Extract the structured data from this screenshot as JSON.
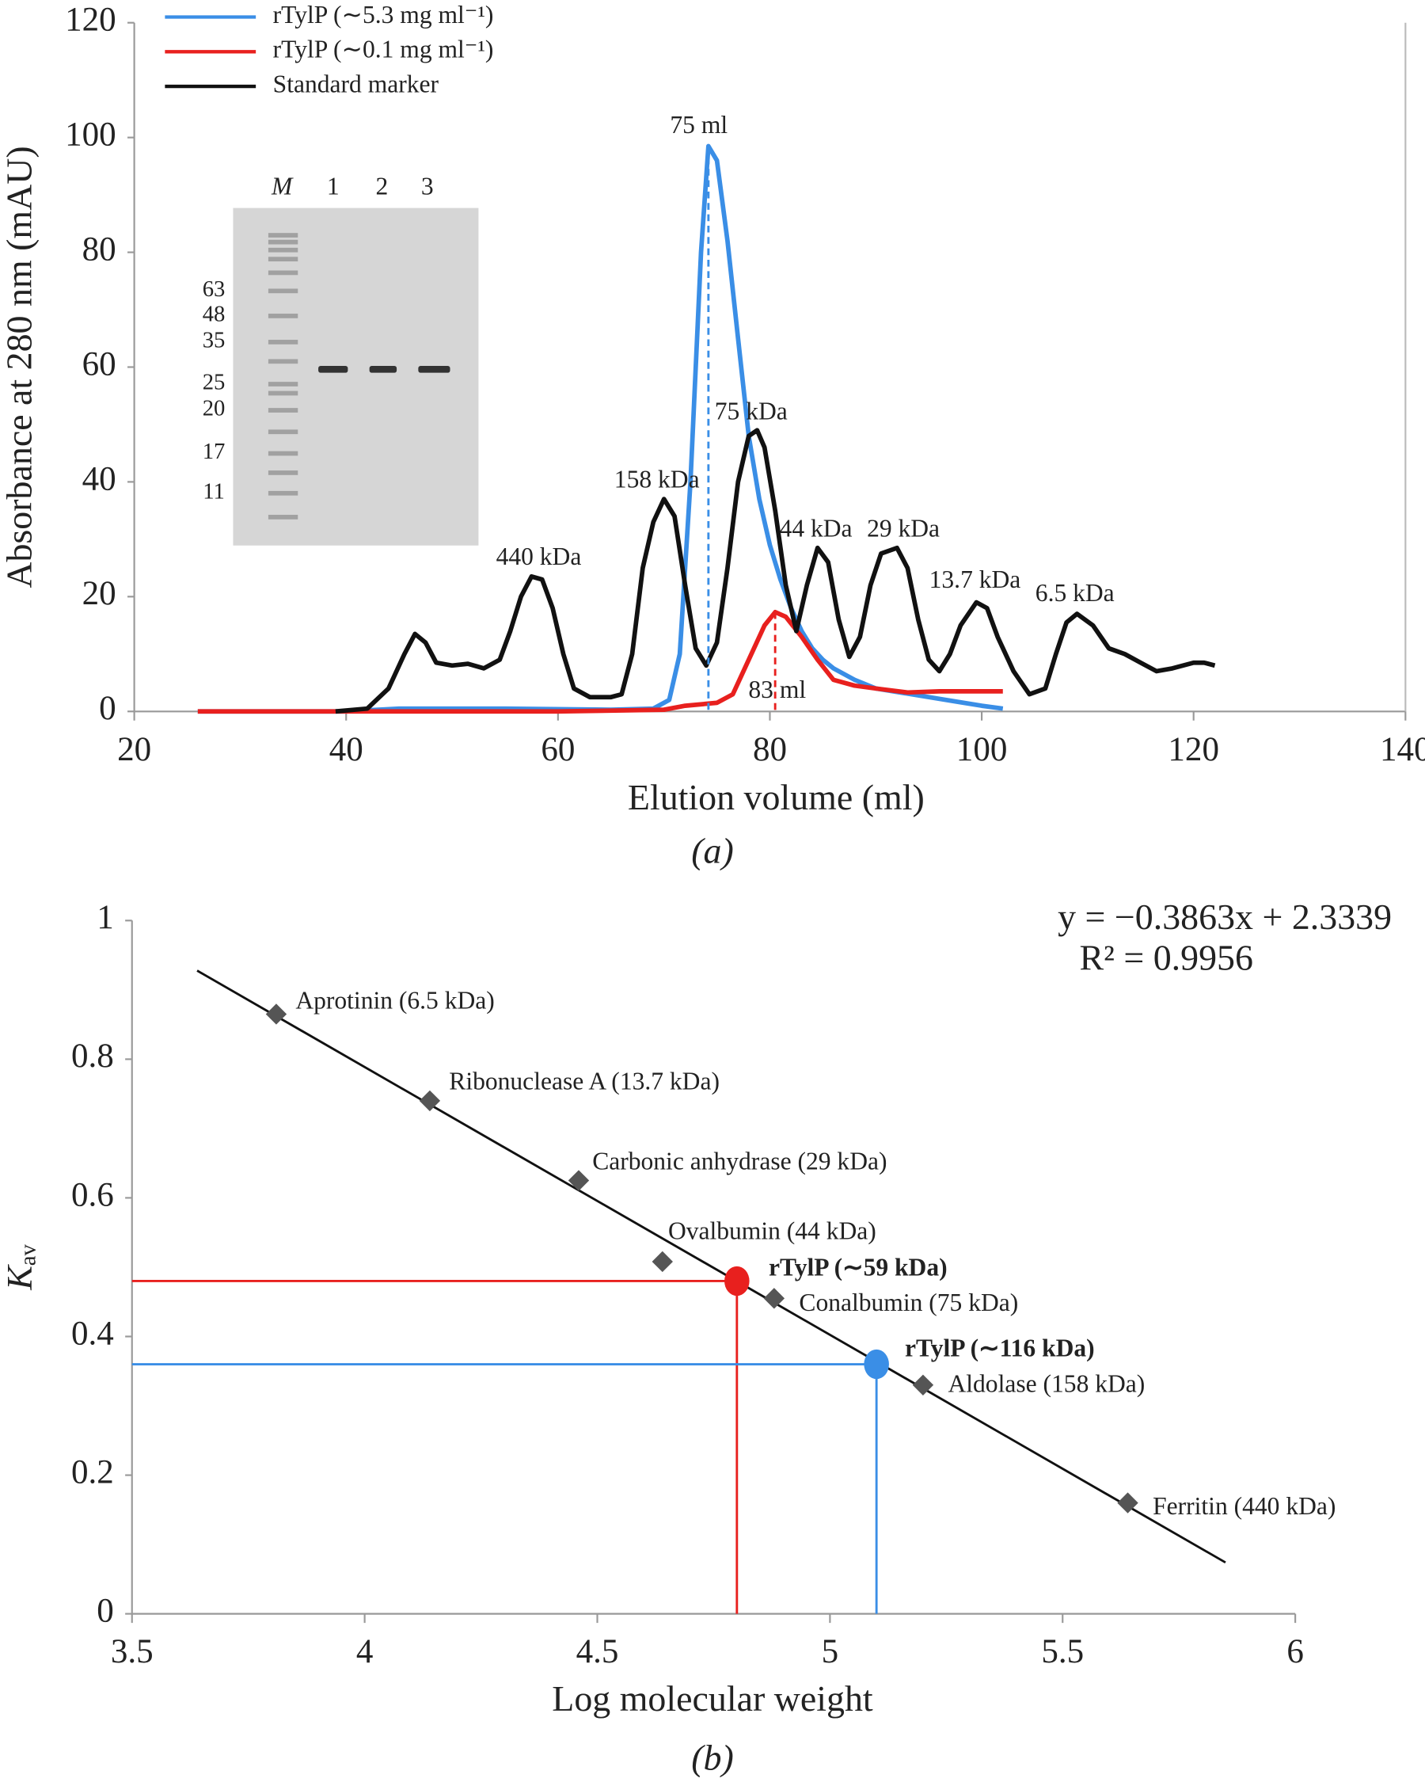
{
  "chart_data": [
    {
      "type": "line",
      "caption": "(a)",
      "x_label": "Elution volume (ml)",
      "y_label": "Absorbance at 280 nm (mAU)",
      "xlim": [
        20,
        140
      ],
      "xticks": [
        20,
        40,
        60,
        80,
        100,
        120,
        140
      ],
      "ylim": [
        0,
        120
      ],
      "yticks": [
        0,
        20,
        40,
        60,
        80,
        100,
        120
      ],
      "legend": "top-left",
      "series": [
        {
          "name": "rTylP (∼5.3 mg ml⁻¹)",
          "color": "#3a8ee6",
          "x": [
            26,
            40,
            45,
            55,
            65,
            69,
            70.5,
            71.5,
            72.5,
            73.5,
            74.2,
            75,
            76,
            77,
            78,
            79,
            80,
            81,
            82,
            83,
            84,
            85,
            86,
            88,
            90,
            95,
            100,
            102
          ],
          "values": [
            0,
            0,
            0.5,
            0.5,
            0.3,
            0.5,
            2,
            10,
            40,
            80,
            98.5,
            96,
            82,
            65,
            48,
            37,
            29,
            23,
            18,
            14,
            11,
            9,
            7.5,
            5.5,
            4,
            2.5,
            1,
            0.5
          ]
        },
        {
          "name": "rTylP (∼0.1 mg ml⁻¹)",
          "color": "#e8201e",
          "x": [
            26,
            60,
            70,
            72,
            75,
            76.5,
            78,
            79.5,
            80.5,
            81.5,
            83,
            84.5,
            86,
            88,
            90,
            93,
            96,
            100,
            102
          ],
          "values": [
            0,
            0,
            0.3,
            1,
            1.5,
            3,
            9,
            15,
            17.3,
            16.5,
            13,
            9,
            5.5,
            4.5,
            4,
            3.3,
            3.5,
            3.5,
            3.5
          ]
        },
        {
          "name": "Standard marker",
          "color": "#111111",
          "x": [
            39,
            42,
            44,
            45.5,
            46.5,
            47.5,
            48.5,
            50,
            51.5,
            53,
            54.5,
            55.5,
            56.5,
            57.5,
            58.5,
            59.5,
            60.5,
            61.5,
            63,
            65,
            66,
            67,
            68,
            69,
            70,
            71,
            72,
            73,
            74,
            75,
            76,
            77,
            78,
            78.8,
            79.5,
            80.5,
            81.5,
            82.5,
            83.5,
            84.5,
            85.5,
            86.5,
            87.5,
            88.5,
            89.5,
            90.5,
            92,
            93,
            94,
            95,
            96,
            97,
            98,
            99.5,
            100.5,
            101.5,
            103,
            104.5,
            106,
            107,
            108,
            109,
            110.5,
            112,
            113.5,
            115,
            116.5,
            118,
            120,
            121,
            122
          ],
          "values": [
            0,
            0.5,
            4,
            10,
            13.5,
            12,
            8.5,
            8,
            8.3,
            7.5,
            9,
            14,
            20,
            23.5,
            23,
            18,
            10,
            4,
            2.5,
            2.5,
            3,
            10,
            25,
            33,
            37,
            34,
            22,
            11,
            8,
            12,
            25,
            40,
            48,
            49,
            46,
            35,
            22,
            14,
            22,
            28.5,
            26,
            16,
            9.5,
            13,
            22,
            27.5,
            28.5,
            25,
            16,
            9,
            7,
            10,
            15,
            19,
            18,
            13,
            7,
            3,
            4,
            10,
            15.5,
            17,
            15,
            11,
            10,
            8.5,
            7,
            7.5,
            8.5,
            8.5,
            8
          ]
        }
      ],
      "volume_labels": [
        "75 ml",
        "83 ml"
      ],
      "peak_labels": [
        "440 kDa",
        "158 kDa",
        "75 kDa",
        "44 kDa",
        "29 kDa",
        "13.7 kDa",
        "6.5 kDa"
      ],
      "inset": {
        "lanes": [
          "M",
          "1",
          "2",
          "3"
        ],
        "markers": [
          "63",
          "48",
          "35",
          "25",
          "20",
          "17",
          "11"
        ]
      }
    },
    {
      "type": "scatter",
      "caption": "(b)",
      "x_label": "Log molecular weight",
      "y_label": {
        "main": "K",
        "sub": "av"
      },
      "xlim": [
        3.5,
        6
      ],
      "xticks": [
        3.5,
        4,
        4.5,
        5,
        5.5,
        6
      ],
      "ylim": [
        0,
        1
      ],
      "yticks": [
        0,
        0.2,
        0.4,
        0.6,
        0.8,
        1
      ],
      "standards": {
        "color": "#555555",
        "names": [
          "Aprotinin (6.5 kDa)",
          "Ribonuclease A (13.7 kDa)",
          "Carbonic anhydrase (29 kDa)",
          "Ovalbumin (44 kDa)",
          "Conalbumin (75 kDa)",
          "Aldolase (158 kDa)",
          "Ferritin (440 kDa)"
        ],
        "x": [
          3.81,
          4.14,
          4.46,
          4.64,
          4.88,
          5.2,
          5.64
        ],
        "values": [
          0.865,
          0.74,
          0.625,
          0.508,
          0.455,
          0.33,
          0.16
        ]
      },
      "samples": {
        "names": [
          "rTylP (∼59 kDa)",
          "rTylP (∼116 kDa)"
        ],
        "colors": [
          "#e8201e",
          "#3a8ee6"
        ],
        "x": [
          4.8,
          5.1
        ],
        "values": [
          0.48,
          0.36
        ]
      },
      "fit": {
        "equation": "y = −0.3863x + 2.3339",
        "r2": "R² = 0.9956",
        "slope": -0.3863,
        "intercept": 2.3339,
        "xrange": [
          3.64,
          5.85
        ]
      }
    }
  ]
}
